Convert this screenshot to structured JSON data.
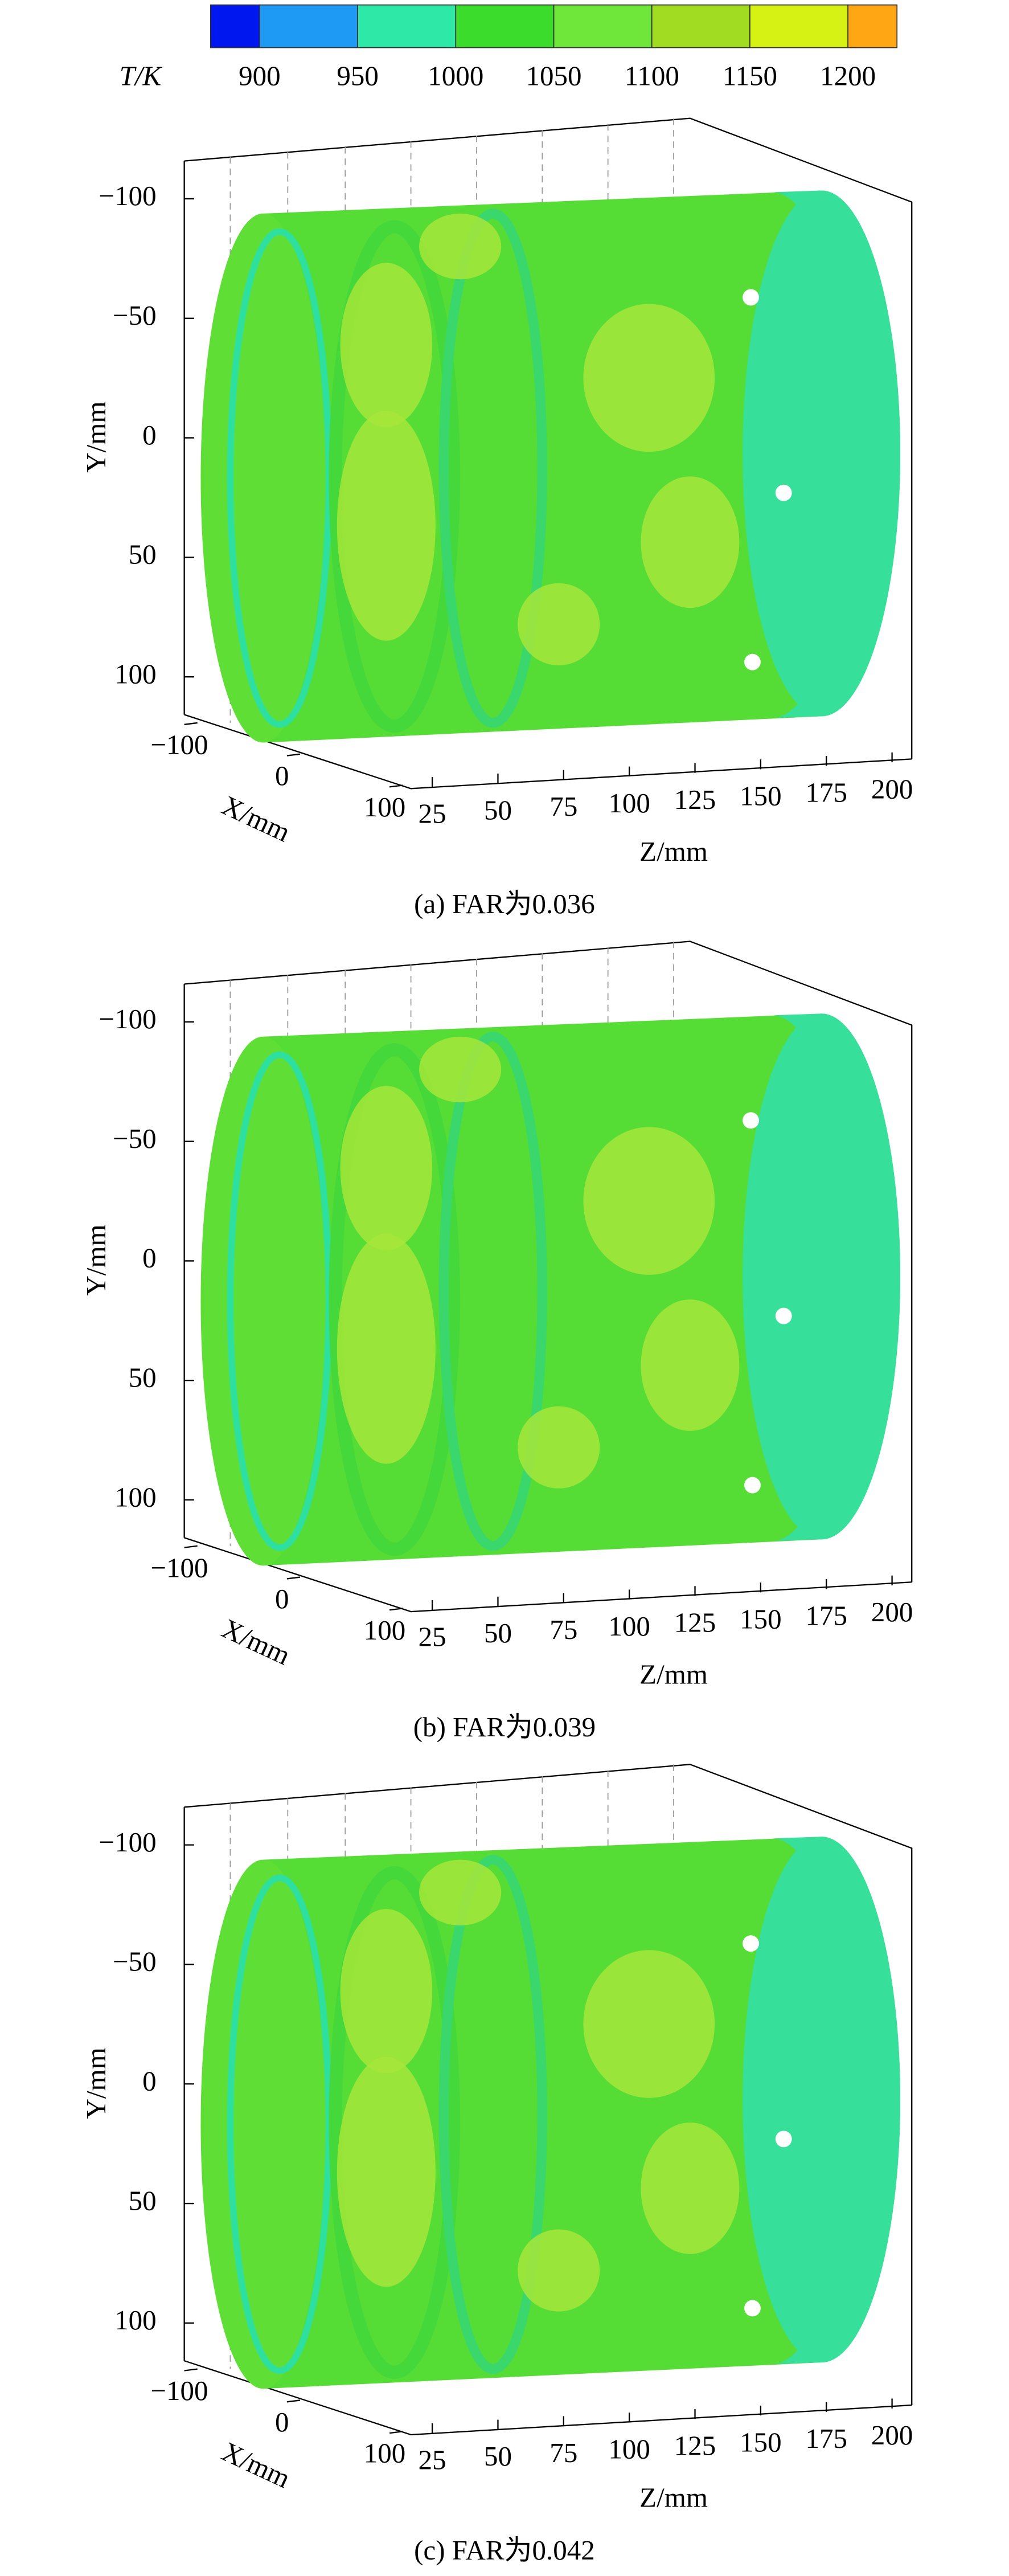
{
  "colorbar": {
    "label": "T/K",
    "levels": [
      875,
      900,
      950,
      1000,
      1050,
      1100,
      1150,
      1200,
      1225
    ],
    "ticks": [
      900,
      950,
      1000,
      1050,
      1100,
      1150,
      1200
    ],
    "colors": [
      "#0018f0",
      "#1e9af5",
      "#2ee8a8",
      "#3cdc2c",
      "#6fe63a",
      "#a2dc22",
      "#d6f214",
      "#ffa614"
    ]
  },
  "panels": [
    {
      "caption": "(a) FAR为0.036",
      "ylabel": "Y/mm",
      "xlabel": "X/mm",
      "zlabel": "Z/mm",
      "yticks": [
        {
          "value": -100,
          "label": "−100"
        },
        {
          "value": -50,
          "label": "−50"
        },
        0,
        50,
        100
      ],
      "xticks": [
        {
          "value": -100,
          "label": "−100"
        },
        0,
        100
      ],
      "zticks": [
        25,
        50,
        75,
        100,
        125,
        150,
        175,
        200
      ]
    },
    {
      "caption": "(b) FAR为0.039",
      "ylabel": "Y/mm",
      "xlabel": "X/mm",
      "zlabel": "Z/mm",
      "yticks": [
        {
          "value": -100,
          "label": "−100"
        },
        {
          "value": -50,
          "label": "−50"
        },
        0,
        50,
        100
      ],
      "xticks": [
        {
          "value": -100,
          "label": "−100"
        },
        0,
        100
      ],
      "zticks": [
        25,
        50,
        75,
        100,
        125,
        150,
        175,
        200
      ]
    },
    {
      "caption": "(c) FAR为0.042",
      "ylabel": "Y/mm",
      "xlabel": "X/mm",
      "zlabel": "Z/mm",
      "yticks": [
        {
          "value": -100,
          "label": "−100"
        },
        {
          "value": -50,
          "label": "−50"
        },
        0,
        50,
        100
      ],
      "xticks": [
        {
          "value": -100,
          "label": "−100"
        },
        0,
        100
      ],
      "zticks": [
        25,
        50,
        75,
        100,
        125,
        150,
        175,
        200
      ]
    }
  ]
}
